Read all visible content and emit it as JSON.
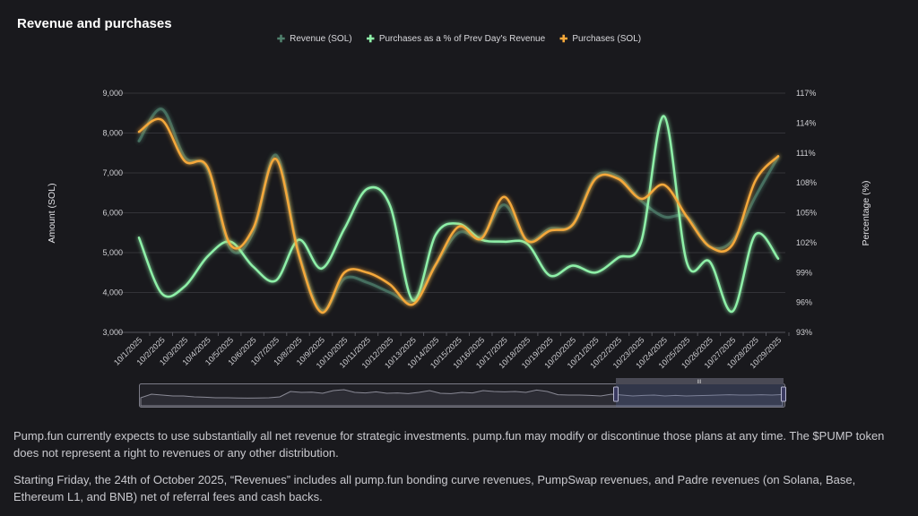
{
  "title": "Revenue and purchases",
  "legend": [
    {
      "label": "Revenue (SOL)",
      "color": "#4f7f6c"
    },
    {
      "label": "Purchases as a % of Prev Day's Revenue",
      "color": "#8ef0a8"
    },
    {
      "label": "Purchases (SOL)",
      "color": "#f5a83a"
    }
  ],
  "chart_data": {
    "type": "line",
    "title": "Revenue and purchases",
    "ylabel": "Amount (SOL)",
    "y2label": "Percentage (%)",
    "ylim": [
      3000,
      9000
    ],
    "y2lim": [
      93,
      117
    ],
    "yticks": [
      "3,000",
      "4,000",
      "5,000",
      "6,000",
      "7,000",
      "8,000",
      "9,000"
    ],
    "y2ticks": [
      "93%",
      "96%",
      "99%",
      "102%",
      "105%",
      "108%",
      "111%",
      "114%",
      "117%"
    ],
    "grid": true,
    "legend_position": "top",
    "x": [
      "10/1/2025",
      "10/2/2025",
      "10/3/2025",
      "10/4/2025",
      "10/5/2025",
      "10/6/2025",
      "10/7/2025",
      "10/8/2025",
      "10/9/2025",
      "10/10/2025",
      "10/11/2025",
      "10/12/2025",
      "10/13/2025",
      "10/14/2025",
      "10/15/2025",
      "10/16/2025",
      "10/17/2025",
      "10/18/2025",
      "10/19/2025",
      "10/20/2025",
      "10/21/2025",
      "10/22/2025",
      "10/23/2025",
      "10/24/2025",
      "10/25/2025",
      "10/26/2025",
      "10/27/2025",
      "10/28/2025",
      "10/29/2025"
    ],
    "series": [
      {
        "name": "Revenue (SOL)",
        "axis": "left",
        "color": "#4f7f6c",
        "values": [
          7800,
          8600,
          7400,
          7100,
          5100,
          5500,
          7450,
          5000,
          3550,
          4350,
          4250,
          4000,
          3800,
          4700,
          5500,
          5400,
          6200,
          5300,
          5600,
          5700,
          6900,
          6900,
          6300,
          5900,
          5900,
          5150,
          5300,
          6400,
          7400
        ]
      },
      {
        "name": "Purchases as a % of Prev Day's Revenue",
        "axis": "right",
        "color": "#8ef0a8",
        "values": [
          102.5,
          96.9,
          97.6,
          100.6,
          102.1,
          99.6,
          98.2,
          102.3,
          99.4,
          103.4,
          107.4,
          105.7,
          96.2,
          102.8,
          103.9,
          102.3,
          102.1,
          101.9,
          98.7,
          99.7,
          99.0,
          100.5,
          102.1,
          114.7,
          100.0,
          100.1,
          95.1,
          102.8,
          100.4
        ]
      },
      {
        "name": "Purchases (SOL)",
        "axis": "left",
        "color": "#f5a83a",
        "values": [
          8030,
          8330,
          7300,
          7150,
          5200,
          5600,
          7350,
          4950,
          3500,
          4500,
          4500,
          4200,
          3700,
          4700,
          5650,
          5350,
          6400,
          5300,
          5550,
          5700,
          6850,
          6850,
          6350,
          6700,
          5900,
          5150,
          5200,
          6800,
          7420
        ]
      }
    ]
  },
  "footer": {
    "p1": "Pump.fun currently expects to use substantially all net revenue for strategic investments. pump.fun may modify or discontinue those plans at any time. The $PUMP token does not represent a right to revenues or any other distribution.",
    "p2": "Starting Friday, the 24th of October 2025, “Revenues” includes all pump.fun bonding curve revenues, PumpSwap revenues, and Padre revenues (on Solana, Base, Ethereum L1, and BNB) net of referral fees and cash backs."
  }
}
